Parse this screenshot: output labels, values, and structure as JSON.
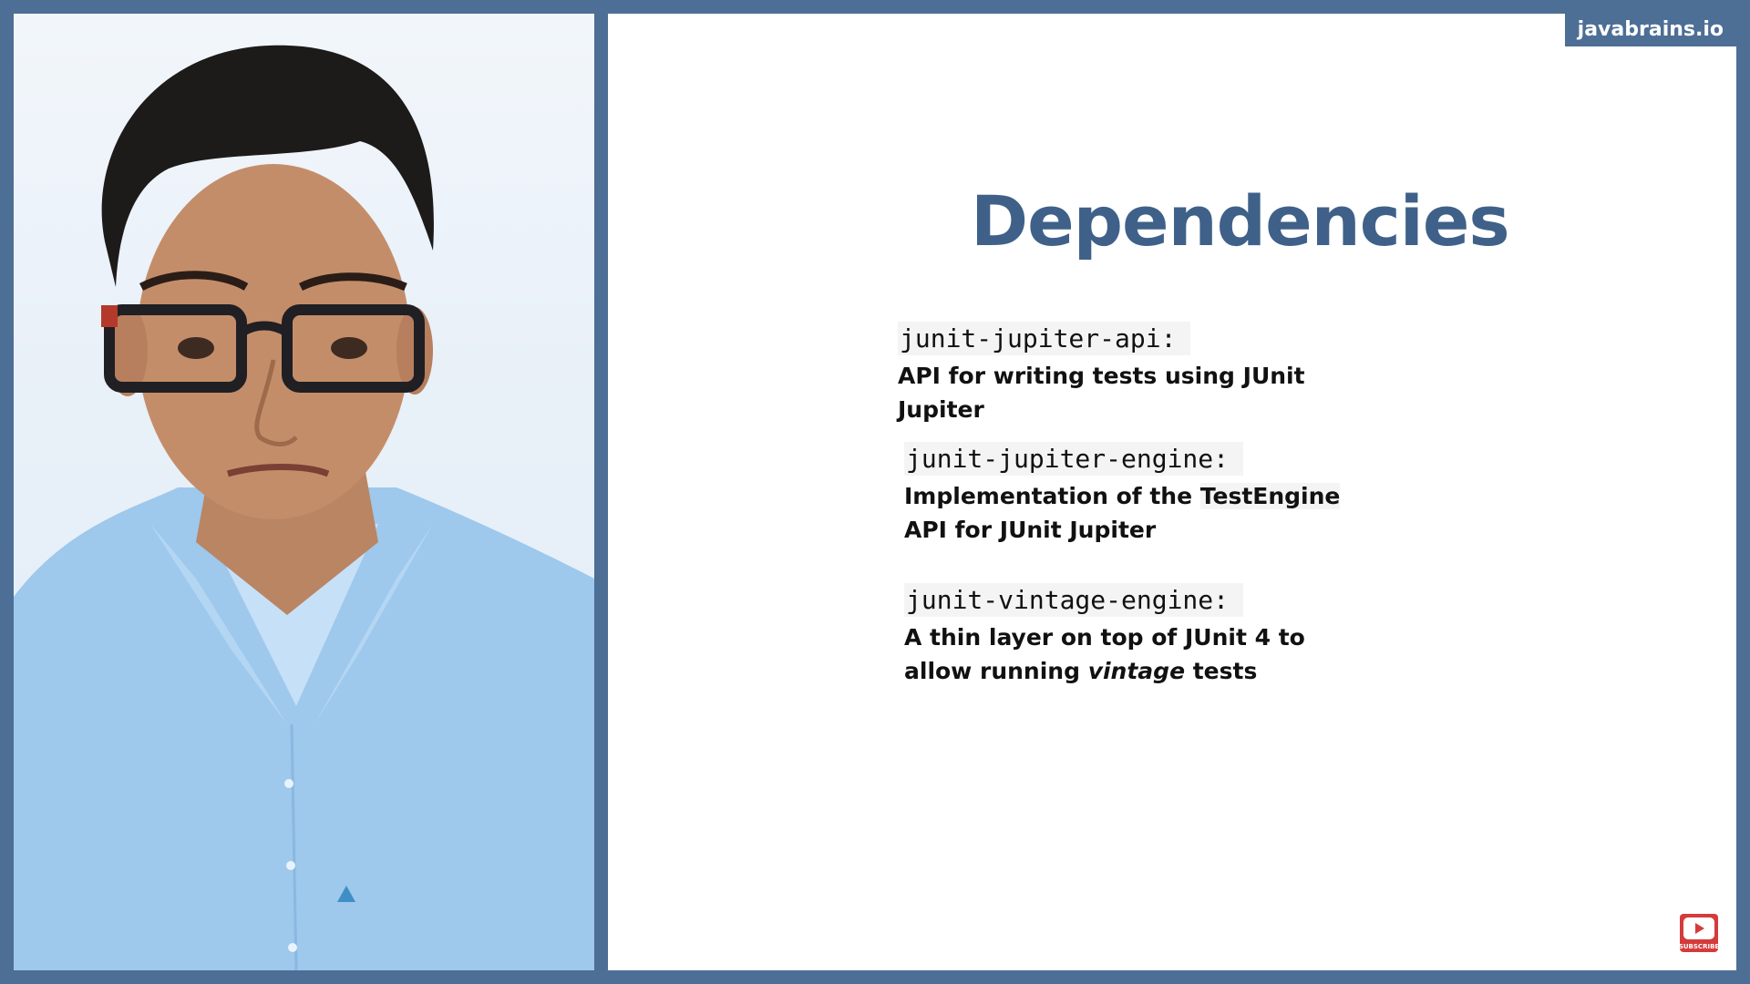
{
  "brand": {
    "label": "javabrains.io"
  },
  "slide": {
    "title": "Dependencies",
    "dependencies": [
      {
        "name": "junit-jupiter-api:",
        "description": "API for writing tests using JUnit Jupiter"
      },
      {
        "name": "junit-jupiter-engine:",
        "description_prefix": "Implementation of the ",
        "description_highlight": "TestEngine",
        "description_suffix": " API for JUnit Jupiter"
      },
      {
        "name": "junit-vintage-engine:",
        "description_prefix": "A thin layer on top of JUnit 4 to allow running ",
        "description_italic": "vintage",
        "description_suffix": " tests"
      }
    ]
  },
  "subscribe": {
    "icon": "subscribe-play-icon",
    "label": "SUBSCRIBE"
  },
  "colors": {
    "frame": "#4d6e95",
    "title": "#3f6189",
    "subscribe": "#d53b3b"
  }
}
